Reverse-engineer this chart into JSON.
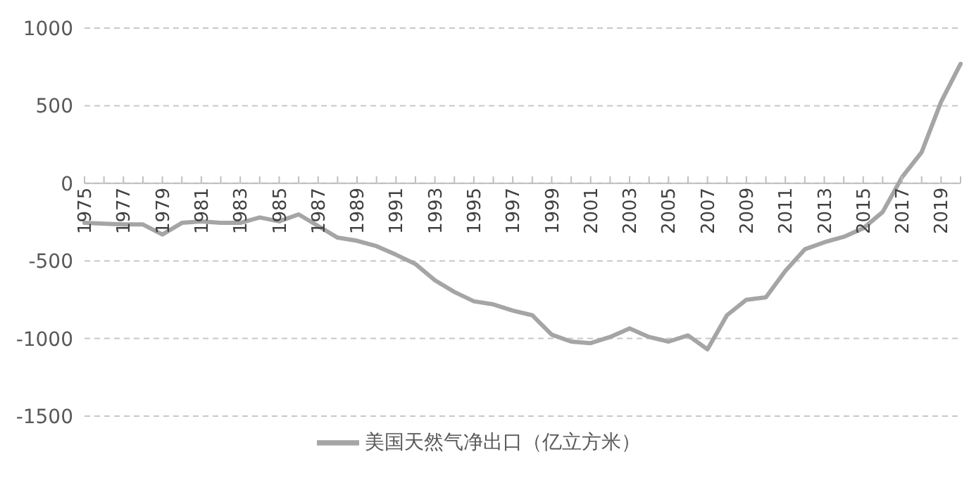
{
  "chart_data": {
    "type": "line",
    "categories": [
      "1975",
      null,
      "1977",
      null,
      "1979",
      null,
      "1981",
      null,
      "1983",
      null,
      "1985",
      null,
      "1987",
      null,
      "1989",
      null,
      "1991",
      null,
      "1993",
      null,
      "1995",
      null,
      "1997",
      null,
      "1999",
      null,
      "2001",
      null,
      "2003",
      null,
      "2005",
      null,
      "2007",
      null,
      "2009",
      null,
      "2011",
      null,
      "2013",
      null,
      "2015",
      null,
      "2017",
      null,
      "2019",
      null
    ],
    "series": [
      {
        "name": "美国天然气净出口（亿立方米）",
        "color": "#a5a5a5",
        "values": [
          -255,
          -260,
          -265,
          -265,
          -330,
          -255,
          -245,
          -255,
          -255,
          -220,
          -245,
          -200,
          -275,
          -350,
          -370,
          -405,
          -460,
          -520,
          -625,
          -700,
          -760,
          -780,
          -820,
          -850,
          -975,
          -1020,
          -1030,
          -990,
          -935,
          -990,
          -1020,
          -980,
          -1070,
          -850,
          -750,
          -735,
          -565,
          -425,
          -380,
          -345,
          -290,
          -185,
          40,
          200,
          525,
          770
        ]
      }
    ],
    "ylim": [
      -1500,
      1000
    ],
    "yticks": [
      -1500,
      -1000,
      -500,
      0,
      500,
      1000
    ],
    "grid": "y",
    "legend": "bottom",
    "marker": "none",
    "line_style": "solid"
  }
}
